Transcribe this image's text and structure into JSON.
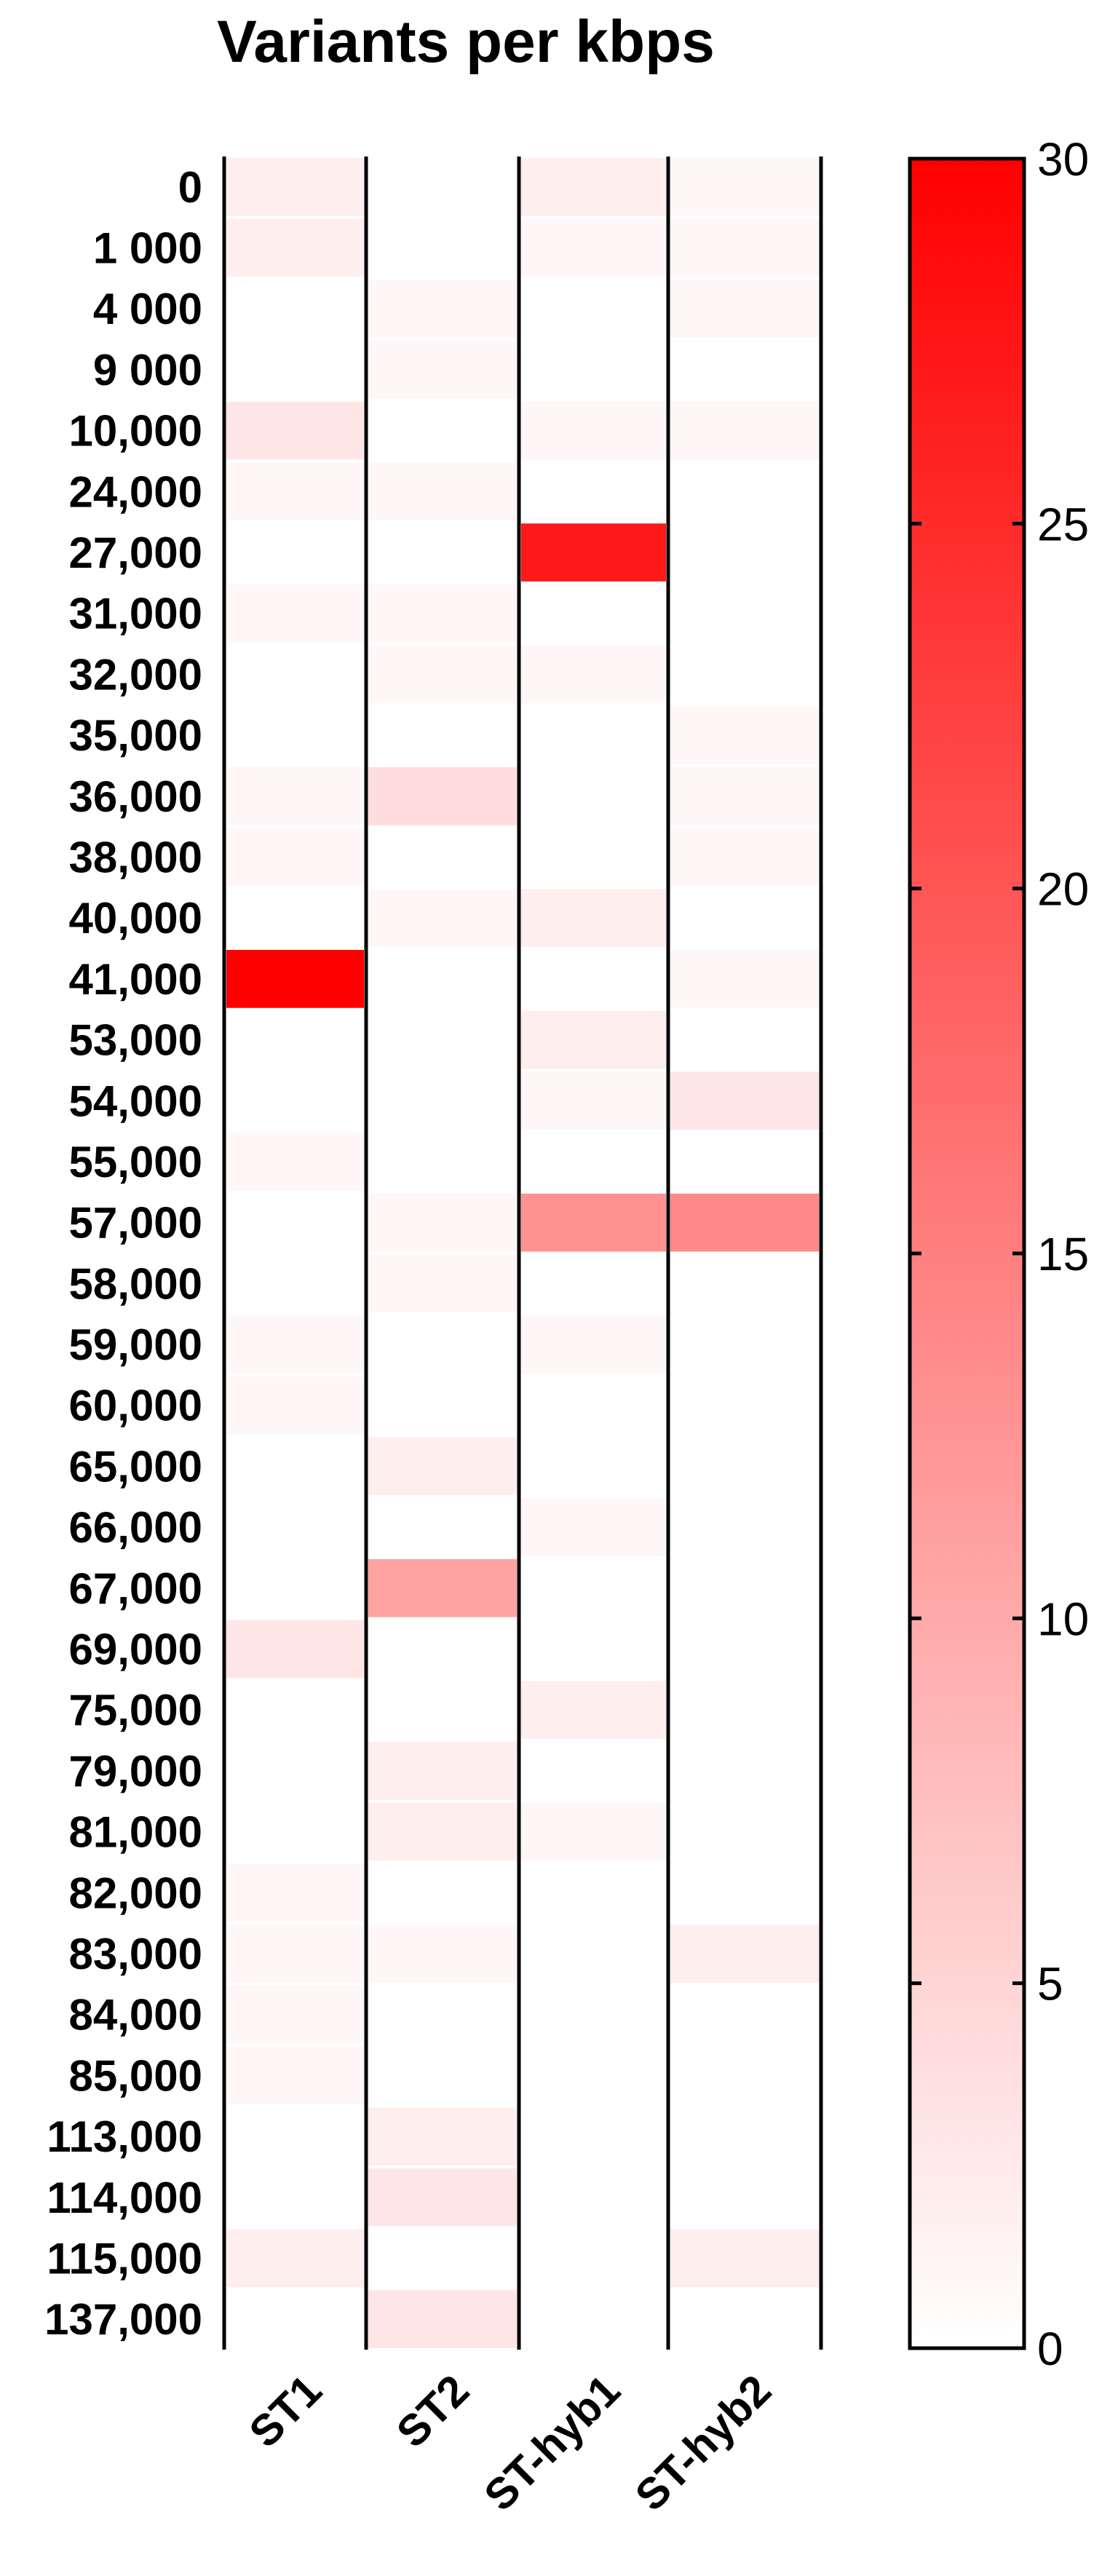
{
  "chart_data": {
    "type": "heatmap",
    "title": "Variants per kbps",
    "rows": [
      "0",
      "1 000",
      "4 000",
      "9 000",
      "10,000",
      "24,000",
      "27,000",
      "31,000",
      "32,000",
      "35,000",
      "36,000",
      "38,000",
      "40,000",
      "41,000",
      "53,000",
      "54,000",
      "55,000",
      "57,000",
      "58,000",
      "59,000",
      "60,000",
      "65,000",
      "66,000",
      "67,000",
      "69,000",
      "75,000",
      "79,000",
      "81,000",
      "82,000",
      "83,000",
      "84,000",
      "85,000",
      "113,000",
      "114,000",
      "115,000",
      "137,000"
    ],
    "columns": [
      "ST1",
      "ST2",
      "ST-hyb1",
      "ST-hyb2"
    ],
    "values": [
      [
        2,
        0,
        2,
        1
      ],
      [
        2,
        0,
        1,
        1
      ],
      [
        0,
        1,
        0,
        1
      ],
      [
        0,
        1,
        0,
        0
      ],
      [
        3,
        0,
        1,
        1
      ],
      [
        1,
        1,
        0,
        0
      ],
      [
        0,
        0,
        27,
        0
      ],
      [
        1,
        1,
        0,
        0
      ],
      [
        0,
        1,
        1,
        0
      ],
      [
        0,
        0,
        0,
        1
      ],
      [
        1,
        4,
        0,
        1
      ],
      [
        1,
        0,
        0,
        1
      ],
      [
        0,
        1,
        2,
        0
      ],
      [
        30,
        0,
        0,
        1
      ],
      [
        0,
        0,
        2,
        0
      ],
      [
        0,
        0,
        1,
        3
      ],
      [
        1,
        0,
        0,
        0
      ],
      [
        0,
        1,
        13,
        14
      ],
      [
        0,
        1,
        0,
        0
      ],
      [
        1,
        0,
        1,
        0
      ],
      [
        1,
        0,
        0,
        0
      ],
      [
        0,
        2,
        0,
        0
      ],
      [
        0,
        0,
        1,
        0
      ],
      [
        0,
        11,
        0,
        0
      ],
      [
        3,
        0,
        0,
        0
      ],
      [
        0,
        0,
        2,
        0
      ],
      [
        0,
        2,
        0,
        0
      ],
      [
        0,
        2,
        1,
        0
      ],
      [
        1,
        0,
        0,
        0
      ],
      [
        1,
        1,
        0,
        2
      ],
      [
        1,
        0,
        0,
        0
      ],
      [
        1,
        0,
        0,
        0
      ],
      [
        0,
        2,
        0,
        0
      ],
      [
        0,
        3,
        0,
        0
      ],
      [
        2,
        0,
        0,
        2
      ],
      [
        0,
        3,
        0,
        0
      ]
    ],
    "colorbar": {
      "min": 0,
      "max": 30,
      "ticks": [
        0,
        5,
        10,
        15,
        20,
        25,
        30
      ]
    },
    "colors": {
      "low": "#ffffff",
      "high": "#ff0000",
      "grid": "#000000"
    }
  }
}
